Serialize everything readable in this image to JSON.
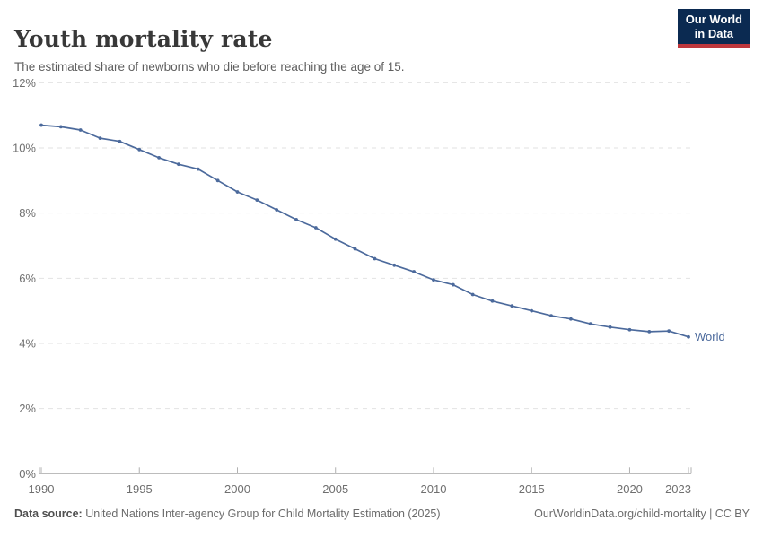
{
  "header": {
    "title": "Youth mortality rate",
    "subtitle": "The estimated share of newborns who die before reaching the age of 15.",
    "logo": {
      "line1": "Our World",
      "line2": "in Data",
      "bg_color": "#0b2a51",
      "stripe_color": "#be373c"
    }
  },
  "chart_data": {
    "type": "line",
    "title": "Youth mortality rate",
    "subtitle": "The estimated share of newborns who die before reaching the age of 15.",
    "x": [
      1990,
      1991,
      1992,
      1993,
      1994,
      1995,
      1996,
      1997,
      1998,
      1999,
      2000,
      2001,
      2002,
      2003,
      2004,
      2005,
      2006,
      2007,
      2008,
      2009,
      2010,
      2011,
      2012,
      2013,
      2014,
      2015,
      2016,
      2017,
      2018,
      2019,
      2020,
      2021,
      2022,
      2023
    ],
    "series": [
      {
        "name": "World",
        "color": "#4C6A9C",
        "values": [
          10.7,
          10.65,
          10.55,
          10.3,
          10.2,
          9.95,
          9.7,
          9.5,
          9.35,
          9.0,
          8.65,
          8.4,
          8.1,
          7.8,
          7.55,
          7.2,
          6.9,
          6.6,
          6.4,
          6.2,
          5.95,
          5.8,
          5.5,
          5.3,
          5.15,
          5.0,
          4.85,
          4.75,
          4.6,
          4.5,
          4.42,
          4.36,
          4.38,
          4.2
        ]
      }
    ],
    "ylim": [
      0,
      12
    ],
    "yticks": [
      0,
      2,
      4,
      6,
      8,
      10,
      12
    ],
    "ytick_suffix": "%",
    "xticks": [
      1990,
      1995,
      2000,
      2005,
      2010,
      2015,
      2020,
      2023
    ],
    "grid": "horizontal-dashed",
    "legend_position": "end-of-line"
  },
  "footer": {
    "datasource_label": "Data source:",
    "datasource_value": "United Nations Inter-agency Group for Child Mortality Estimation (2025)",
    "credit": "OurWorldinData.org/child-mortality | CC BY"
  }
}
